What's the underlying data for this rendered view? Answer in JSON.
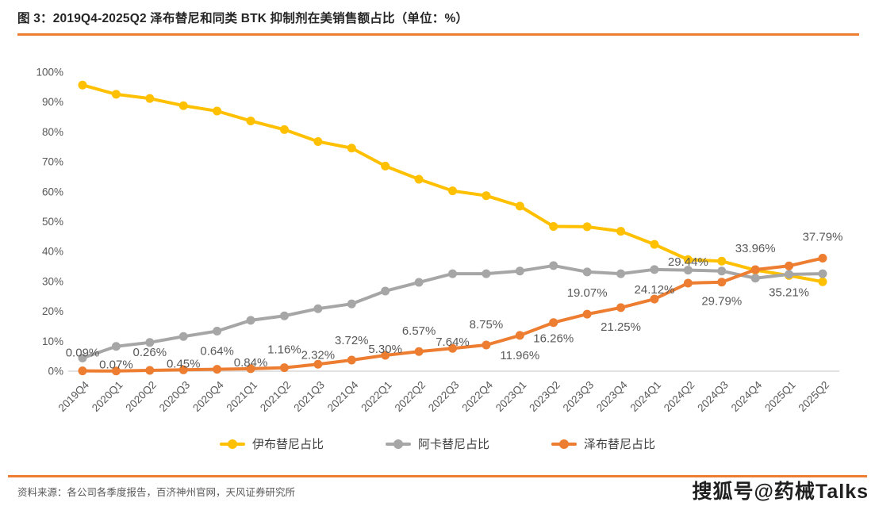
{
  "header": {
    "figure_title": "图 3：2019Q4-2025Q2 泽布替尼和同类 BTK 抑制剂在美销售额占比（单位：%）"
  },
  "chart_data": {
    "type": "line",
    "title": "2019Q4-2025Q2 泽布替尼和同类 BTK 抑制剂在美销售额占比",
    "unit": "%",
    "categories": [
      "2019Q4",
      "2020Q1",
      "2020Q2",
      "2020Q3",
      "2020Q4",
      "2021Q1",
      "2021Q2",
      "2021Q3",
      "2021Q4",
      "2022Q1",
      "2022Q2",
      "2022Q3",
      "2022Q4",
      "2023Q1",
      "2023Q2",
      "2023Q3",
      "2023Q4",
      "2024Q1",
      "2024Q2",
      "2024Q3",
      "2024Q4",
      "2025Q1",
      "2025Q2"
    ],
    "series": [
      {
        "name": "伊布替尼占比",
        "color": "#FFC000",
        "values": [
          95.7,
          92.6,
          91.2,
          88.8,
          87.0,
          83.7,
          80.8,
          76.8,
          74.6,
          68.6,
          64.2,
          60.3,
          58.7,
          55.2,
          48.4,
          48.3,
          46.8,
          42.4,
          37.3,
          36.8,
          33.8,
          32.0,
          29.9
        ]
      },
      {
        "name": "阿卡替尼占比",
        "color": "#A6A6A6",
        "values": [
          4.4,
          8.3,
          9.6,
          11.6,
          13.4,
          17.0,
          18.5,
          20.9,
          22.5,
          26.8,
          29.7,
          32.6,
          32.6,
          33.5,
          35.3,
          33.2,
          32.6,
          34.0,
          33.8,
          33.5,
          31.1,
          32.4,
          32.6
        ]
      },
      {
        "name": "泽布替尼占比",
        "color": "#ED7D31",
        "values": [
          0.09,
          0.07,
          0.26,
          0.45,
          0.64,
          0.84,
          1.16,
          2.32,
          3.72,
          5.3,
          6.57,
          7.64,
          8.75,
          11.96,
          16.26,
          19.07,
          21.25,
          24.12,
          29.44,
          29.79,
          33.96,
          35.21,
          37.79
        ],
        "data_labels": [
          "0.09%",
          "0.07%",
          "0.26%",
          "0.45%",
          "0.64%",
          "0.84%",
          "1.16%",
          "2.32%",
          "3.72%",
          "5.30%",
          "6.57%",
          "7.64%",
          "8.75%",
          "11.96%",
          "16.26%",
          "19.07%",
          "21.25%",
          "24.12%",
          "29.44%",
          "29.79%",
          "33.96%",
          "35.21%",
          "37.79%"
        ],
        "label_dy": [
          -23,
          -8,
          -23,
          -8,
          -23,
          -8,
          -23,
          -12,
          -25,
          -8,
          -26,
          -8,
          -26,
          25,
          20,
          -27,
          24,
          -12,
          -27,
          24,
          -27,
          33,
          -27
        ]
      }
    ],
    "ylabel_ticks": [
      "0%",
      "10%",
      "20%",
      "30%",
      "40%",
      "50%",
      "60%",
      "70%",
      "80%",
      "90%",
      "100%"
    ],
    "ylim": [
      0,
      100
    ],
    "ytick_step": 10,
    "grid": false,
    "legend_position": "bottom"
  },
  "footer": {
    "source": "资料来源：各公司各季度报告，百济神州官网，天风证券研究所",
    "watermark": "搜狐号@药械Talks"
  },
  "theme": {
    "accent": "#ED7D31",
    "axis_text": "#595959",
    "data_label_text": "#595959",
    "axis_line": "#D9D9D9",
    "title_text": "#262626"
  }
}
